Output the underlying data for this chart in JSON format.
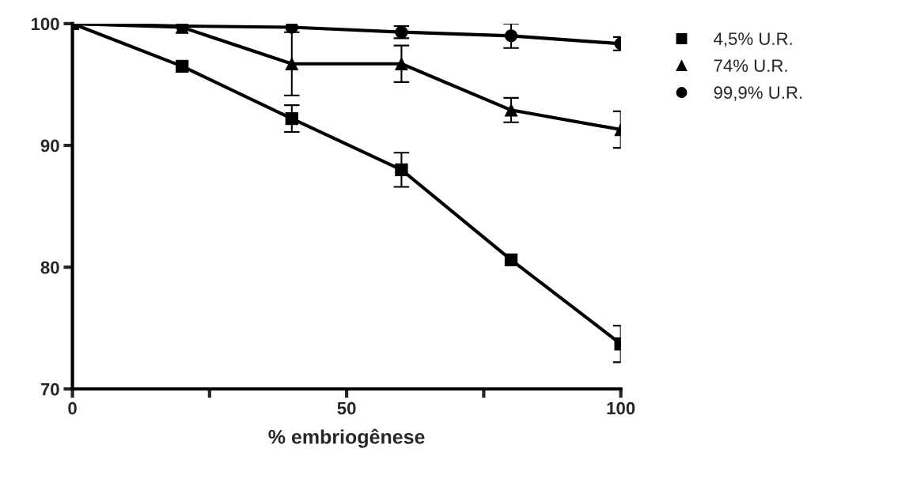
{
  "chart_data": {
    "type": "line",
    "xlabel": "% embriogênese",
    "x": [
      0,
      20,
      40,
      60,
      80,
      100
    ],
    "series": [
      {
        "name": "4,5% U.R.",
        "color": "#000000",
        "marker": "square",
        "values": [
          100,
          96.5,
          92.2,
          88.0,
          80.6,
          73.7
        ],
        "errors": [
          null,
          null,
          1.1,
          1.4,
          null,
          1.5
        ]
      },
      {
        "name": "74% U.R.",
        "color": "#000000",
        "marker": "triangle",
        "values": [
          100,
          99.7,
          96.7,
          96.7,
          92.9,
          91.3
        ],
        "errors": [
          null,
          null,
          2.6,
          1.5,
          1.0,
          1.5
        ]
      },
      {
        "name": "99,9% U.R.",
        "color": "#000000",
        "marker": "circle",
        "values": [
          100,
          99.8,
          99.7,
          99.3,
          99.0,
          98.35
        ],
        "errors": [
          null,
          null,
          null,
          0.5,
          1.0,
          0.55
        ]
      }
    ],
    "xlim": [
      0,
      100
    ],
    "xticks": [
      0,
      {
        "value": 25,
        "label": null
      },
      50,
      {
        "value": 75,
        "label": null
      },
      100
    ],
    "ylim": [
      70,
      100
    ],
    "yticks": [
      70,
      80,
      90,
      100
    ],
    "grid": false,
    "legend": "top right",
    "line_style": "solid"
  }
}
